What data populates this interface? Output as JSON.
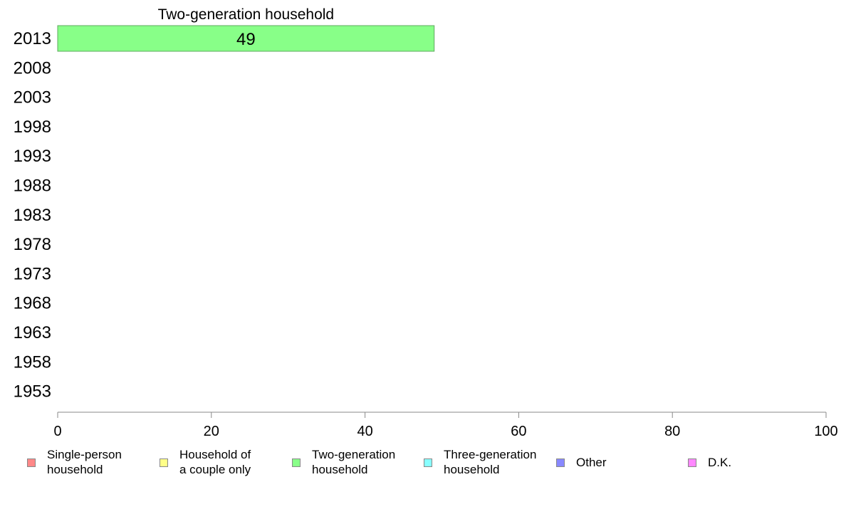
{
  "chart_data": {
    "type": "bar",
    "orientation": "horizontal",
    "stacked": true,
    "categories": [
      "2013",
      "2008",
      "2003",
      "1998",
      "1993",
      "1988",
      "1983",
      "1978",
      "1973",
      "1968",
      "1963",
      "1958",
      "1953"
    ],
    "segment_title": "Two-generation household",
    "series": [
      {
        "name": "Single-person\nhousehold",
        "color": "#ff8888",
        "values": [
          null,
          null,
          null,
          null,
          null,
          null,
          null,
          null,
          null,
          null,
          null,
          null,
          null
        ]
      },
      {
        "name": "Household of\na couple only",
        "color": "#ffff88",
        "values": [
          null,
          null,
          null,
          null,
          null,
          null,
          null,
          null,
          null,
          null,
          null,
          null,
          null
        ]
      },
      {
        "name": "Two-generation\nhousehold",
        "color": "#88ff88",
        "values": [
          49,
          null,
          null,
          null,
          null,
          null,
          null,
          null,
          null,
          null,
          null,
          null,
          null
        ]
      },
      {
        "name": "Three-generation\nhousehold",
        "color": "#88ffff",
        "values": [
          null,
          null,
          null,
          null,
          null,
          null,
          null,
          null,
          null,
          null,
          null,
          null,
          null
        ]
      },
      {
        "name": "Other",
        "color": "#8888ff",
        "values": [
          null,
          null,
          null,
          null,
          null,
          null,
          null,
          null,
          null,
          null,
          null,
          null,
          null
        ]
      },
      {
        "name": "D.K.",
        "color": "#ff88ff",
        "values": [
          null,
          null,
          null,
          null,
          null,
          null,
          null,
          null,
          null,
          null,
          null,
          null,
          null
        ]
      }
    ],
    "xlim": [
      0,
      100
    ],
    "xticks": [
      0,
      20,
      40,
      60,
      80,
      100
    ],
    "grid": false,
    "legend_position": "bottom"
  }
}
